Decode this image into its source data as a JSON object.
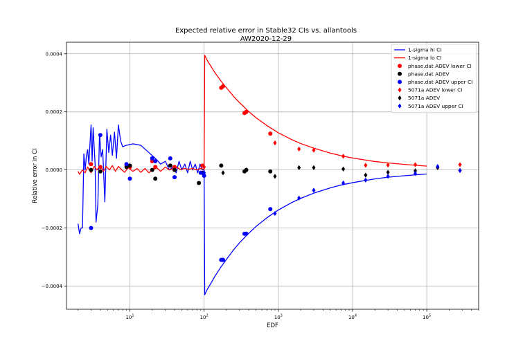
{
  "chart_data": {
    "type": "scatter",
    "title": "Expected relative error in Stable32 CIs vs. allantools",
    "subtitle": "AW2020-12-29",
    "xlabel": "EDF",
    "ylabel": "Relative error in CI",
    "x_scale": "log",
    "xlim": [
      1.4,
      500000
    ],
    "ylim": [
      -0.00048,
      0.00044
    ],
    "grid": true,
    "legend_position": "top-right",
    "x_ticks": [
      {
        "value": 10,
        "label": "10",
        "sup": "1"
      },
      {
        "value": 100,
        "label": "10",
        "sup": "2"
      },
      {
        "value": 1000,
        "label": "10",
        "sup": "3"
      },
      {
        "value": 10000,
        "label": "10",
        "sup": "4"
      },
      {
        "value": 100000,
        "label": "10",
        "sup": "5"
      }
    ],
    "y_ticks": [
      {
        "value": -0.0004,
        "label": "−0.0004"
      },
      {
        "value": -0.0002,
        "label": "−0.0002"
      },
      {
        "value": 0,
        "label": "0.0000"
      },
      {
        "value": 0.0002,
        "label": "0.0002"
      },
      {
        "value": 0.0004,
        "label": "0.0004"
      }
    ],
    "series": [
      {
        "name": "1-sigma hi CI",
        "kind": "line",
        "color": "#0000ff",
        "points": [
          [
            2.0,
            -0.000185
          ],
          [
            2.1,
            -0.00022
          ],
          [
            2.2,
            -0.0002
          ],
          [
            2.3,
            -0.0002
          ],
          [
            2.4,
            5.5e-05
          ],
          [
            2.5,
            0.0
          ],
          [
            2.6,
            5e-05
          ],
          [
            2.7,
            7e-05
          ],
          [
            2.8,
            2e-05
          ],
          [
            3.0,
            0.000155
          ],
          [
            3.1,
            3e-05
          ],
          [
            3.2,
            0.000145
          ],
          [
            3.4,
            2e-05
          ],
          [
            3.5,
            -0.00018
          ],
          [
            3.7,
            -0.00012
          ],
          [
            3.9,
            0.000125
          ],
          [
            4.1,
            4.5e-05
          ],
          [
            4.3,
            7e-05
          ],
          [
            4.6,
            -0.00011
          ],
          [
            4.9,
            0.00014
          ],
          [
            5.2,
            6e-05
          ],
          [
            5.5,
            0.00012
          ],
          [
            5.8,
            5e-05
          ],
          [
            6.2,
            0.00013
          ],
          [
            6.6,
            4e-05
          ],
          [
            7.0,
            0.000155
          ],
          [
            7.5,
            0.0001
          ],
          [
            8.0,
            8e-05
          ],
          [
            9.0,
            8.5e-05
          ],
          [
            11.0,
            9e-05
          ],
          [
            14.0,
            8.5e-05
          ],
          [
            18.0,
            6e-05
          ],
          [
            22.0,
            4e-05
          ],
          [
            26.0,
            2e-05
          ],
          [
            30.0,
            3e-05
          ],
          [
            34.0,
            0.0
          ],
          [
            38.0,
            1e-05
          ],
          [
            42.0,
            -1e-05
          ],
          [
            46.0,
            3e-05
          ],
          [
            50.0,
            0.0
          ],
          [
            55.0,
            2e-05
          ],
          [
            60.0,
            -1e-05
          ],
          [
            65.0,
            3e-05
          ],
          [
            70.0,
            0.0
          ],
          [
            76.0,
            2e-05
          ],
          [
            82.0,
            -1e-05
          ],
          [
            88.0,
            2e-05
          ],
          [
            94.0,
            0.0
          ],
          [
            100.0,
            0.0
          ],
          [
            102.0,
            -0.00043
          ],
          [
            110.0,
            -0.000412
          ],
          [
            120.0,
            -0.000396
          ],
          [
            140.0,
            -0.000366
          ],
          [
            170.0,
            -0.000333
          ],
          [
            200.0,
            -0.000308
          ],
          [
            250.0,
            -0.000275
          ],
          [
            300.0,
            -0.000251
          ],
          [
            400.0,
            -0.000218
          ],
          [
            500.0,
            -0.000195
          ],
          [
            700.0,
            -0.000165
          ],
          [
            1000.0,
            -0.000138
          ],
          [
            1500.0,
            -0.000113
          ],
          [
            2000.0,
            -9.8e-05
          ],
          [
            3000.0,
            -8e-05
          ],
          [
            5000.0,
            -6.2e-05
          ],
          [
            7000.0,
            -5.2e-05
          ],
          [
            10000.0,
            -4.4e-05
          ],
          [
            15000.0,
            -3.6e-05
          ],
          [
            20000.0,
            -3.1e-05
          ],
          [
            30000.0,
            -2.5e-05
          ],
          [
            50000.0,
            -2e-05
          ],
          [
            70000.0,
            -1.7e-05
          ],
          [
            100000.0,
            -1.4e-05
          ]
        ]
      },
      {
        "name": "1-sigma lo CI",
        "kind": "line",
        "color": "#ff0000",
        "points": [
          [
            2.0,
            -5e-06
          ],
          [
            2.1,
            -1.5e-05
          ],
          [
            2.3,
            0.0
          ],
          [
            2.5,
            -1e-05
          ],
          [
            2.7,
            1e-05
          ],
          [
            3.0,
            -1e-05
          ],
          [
            3.3,
            1.2e-05
          ],
          [
            3.6,
            0.0
          ],
          [
            4.0,
            1.5e-05
          ],
          [
            4.4,
            -5e-06
          ],
          [
            4.8,
            1.2e-05
          ],
          [
            5.3,
            0.0
          ],
          [
            5.8,
            1.5e-05
          ],
          [
            6.4,
            -5e-06
          ],
          [
            7.0,
            1.2e-05
          ],
          [
            7.8,
            0.0
          ],
          [
            8.5,
            -8e-06
          ],
          [
            9.5,
            8e-06
          ],
          [
            11.0,
            -5e-06
          ],
          [
            12.5,
            5e-06
          ],
          [
            14.0,
            -8e-06
          ],
          [
            16.0,
            5e-06
          ],
          [
            18.0,
            -1e-05
          ],
          [
            20.0,
            0.0
          ],
          [
            23.0,
            8e-06
          ],
          [
            26.0,
            -5e-06
          ],
          [
            30.0,
            1e-05
          ],
          [
            34.0,
            0.0
          ],
          [
            38.0,
            5e-06
          ],
          [
            43.0,
            8e-06
          ],
          [
            48.0,
            2e-06
          ],
          [
            55.0,
            5e-06
          ],
          [
            62.0,
            2e-06
          ],
          [
            70.0,
            5e-06
          ],
          [
            80.0,
            0.0
          ],
          [
            90.0,
            5e-06
          ],
          [
            100.0,
            2e-06
          ],
          [
            102.0,
            0.000395
          ],
          [
            110.0,
            0.000378
          ],
          [
            120.0,
            0.000362
          ],
          [
            140.0,
            0.000335
          ],
          [
            170.0,
            0.000305
          ],
          [
            200.0,
            0.000283
          ],
          [
            250.0,
            0.000253
          ],
          [
            300.0,
            0.000232
          ],
          [
            400.0,
            0.000201
          ],
          [
            500.0,
            0.00018
          ],
          [
            700.0,
            0.000153
          ],
          [
            1000.0,
            0.000128
          ],
          [
            1500.0,
            0.000105
          ],
          [
            2000.0,
            9.1e-05
          ],
          [
            3000.0,
            7.5e-05
          ],
          [
            5000.0,
            5.8e-05
          ],
          [
            7000.0,
            4.9e-05
          ],
          [
            10000.0,
            4.1e-05
          ],
          [
            15000.0,
            3.4e-05
          ],
          [
            20000.0,
            2.9e-05
          ],
          [
            30000.0,
            2.4e-05
          ],
          [
            50000.0,
            1.9e-05
          ],
          [
            70000.0,
            1.6e-05
          ],
          [
            100000.0,
            1.3e-05
          ]
        ]
      },
      {
        "name": "phase.dat ADEV lower CI",
        "kind": "marker",
        "marker": "circle",
        "color": "#ff0000",
        "points": [
          [
            3,
            2e-05
          ],
          [
            4,
            1e-05
          ],
          [
            9,
            1.5e-05
          ],
          [
            10,
            1e-05
          ],
          [
            20,
            3e-05
          ],
          [
            22,
            1e-05
          ],
          [
            35,
            1.5e-05
          ],
          [
            40,
            1e-05
          ],
          [
            95,
            1.5e-05
          ],
          [
            170,
            0.000283
          ],
          [
            180,
            0.000288
          ],
          [
            350,
            0.000196
          ],
          [
            370,
            0.0002
          ],
          [
            780,
            0.000125
          ]
        ]
      },
      {
        "name": "phase.dat ADEV",
        "kind": "marker",
        "marker": "circle",
        "color": "#000000",
        "points": [
          [
            3,
            0.0
          ],
          [
            4,
            -5e-06
          ],
          [
            9,
            1e-05
          ],
          [
            10,
            1.5e-05
          ],
          [
            20,
            0.0
          ],
          [
            22,
            -3e-05
          ],
          [
            35,
            1.5e-05
          ],
          [
            40,
            0.0
          ],
          [
            85,
            -4.5e-05
          ],
          [
            95,
            -1e-05
          ],
          [
            170,
            1.5e-05
          ],
          [
            350,
            -5e-06
          ],
          [
            370,
            0.0
          ],
          [
            780,
            -5e-06
          ]
        ]
      },
      {
        "name": "phase.dat ADEV upper CI",
        "kind": "marker",
        "marker": "circle",
        "color": "#0000ff",
        "points": [
          [
            3,
            -0.0002
          ],
          [
            4,
            0.00012
          ],
          [
            9,
            2e-05
          ],
          [
            10,
            -3e-05
          ],
          [
            20,
            4e-05
          ],
          [
            22,
            3e-05
          ],
          [
            35,
            4e-05
          ],
          [
            40,
            -2.5e-05
          ],
          [
            90,
            -1e-05
          ],
          [
            100,
            -2e-05
          ],
          [
            170,
            -0.00031
          ],
          [
            180,
            -0.00031
          ],
          [
            350,
            -0.00022
          ],
          [
            370,
            -0.00022
          ],
          [
            780,
            -0.000135
          ]
        ]
      },
      {
        "name": "5071a ADEV lower CI",
        "kind": "marker",
        "marker": "diamond",
        "color": "#ff0000",
        "points": [
          [
            100,
            1e-05
          ],
          [
            180,
            0.00029
          ],
          [
            370,
            0.0002
          ],
          [
            900,
            9.3e-05
          ],
          [
            1900,
            7.2e-05
          ],
          [
            3000,
            6.8e-05
          ],
          [
            7500,
            4.7e-05
          ],
          [
            15000,
            1.6e-05
          ],
          [
            30000,
            1.7e-05
          ],
          [
            70000,
            1.8e-05
          ],
          [
            140000,
            8e-06
          ],
          [
            280000,
            1.8e-05
          ]
        ]
      },
      {
        "name": "5071a ADEV",
        "kind": "marker",
        "marker": "diamond",
        "color": "#000000",
        "points": [
          [
            180,
            -1e-05
          ],
          [
            370,
            0.0
          ],
          [
            900,
            -2.2e-05
          ],
          [
            1900,
            8e-06
          ],
          [
            3000,
            8e-06
          ],
          [
            7500,
            3e-06
          ],
          [
            15000,
            -1.8e-05
          ],
          [
            30000,
            -8e-06
          ],
          [
            70000,
            -3e-06
          ],
          [
            140000,
            8e-06
          ],
          [
            280000,
            -2e-06
          ]
        ]
      },
      {
        "name": "5071a ADEV upper CI",
        "kind": "marker",
        "marker": "diamond",
        "color": "#0000ff",
        "points": [
          [
            100,
            -1e-05
          ],
          [
            180,
            -0.00031
          ],
          [
            370,
            -0.00022
          ],
          [
            900,
            -0.00015
          ],
          [
            1900,
            -9.7e-05
          ],
          [
            3000,
            -7e-05
          ],
          [
            7500,
            -4.5e-05
          ],
          [
            15000,
            -3.5e-05
          ],
          [
            30000,
            -2.2e-05
          ],
          [
            70000,
            -1.2e-05
          ],
          [
            140000,
            1.2e-05
          ],
          [
            280000,
            -2e-06
          ]
        ]
      }
    ]
  }
}
